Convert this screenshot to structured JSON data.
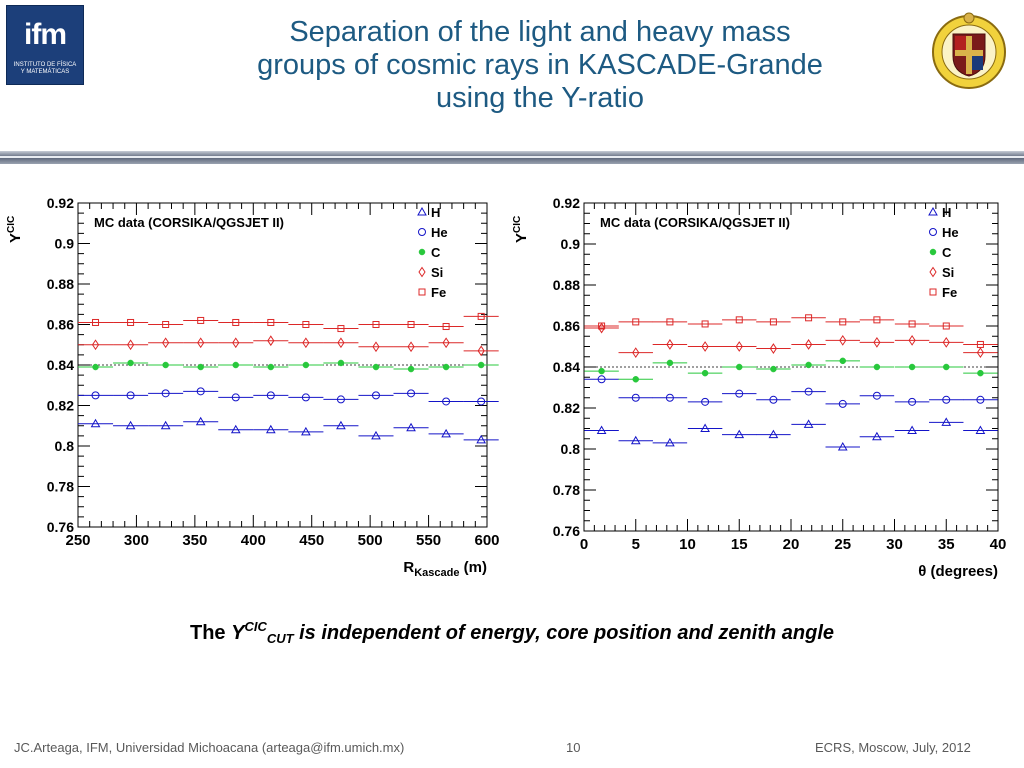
{
  "title": {
    "line1": "Separation of the light and heavy mass",
    "line2": "groups of cosmic rays in KASCADE-Grande",
    "line3": "using the Y-ratio"
  },
  "logo_left": {
    "text": "ifm",
    "subtext_1": "INSTITUTO DE FÍSICA",
    "subtext_2": "Y MATEMÁTICAS"
  },
  "logo_right": {
    "name": "university-crest"
  },
  "subtitle": {
    "prefix": "The",
    "var": "Y",
    "sup": "CIC",
    "sub": "CUT",
    "rest": "is independent of energy, core position and zenith angle"
  },
  "footer": {
    "left": "JC.Arteaga, IFM,  Universidad Michoacana  (arteaga@ifm.umich.mx)",
    "page": "10",
    "right": "ECRS, Moscow, July, 2012"
  },
  "colors": {
    "title": "#1d5a82",
    "H": "#1414c8",
    "He": "#1414c8",
    "C": "#28c83c",
    "Si": "#dc2828",
    "Fe": "#dc2828"
  },
  "chart_data": [
    {
      "type": "scatter",
      "annotation": "MC data (CORSIKA/QGSJET II)",
      "ylabel": "Y",
      "ylabel_sup": "CIC",
      "xlabel": "R",
      "xlabel_sub": "Kascade",
      "xlabel_unit": "(m)",
      "xlim": [
        250,
        600
      ],
      "ylim": [
        0.76,
        0.92
      ],
      "xticks": [
        "250",
        "300",
        "350",
        "400",
        "450",
        "500",
        "550",
        "600"
      ],
      "yticks": [
        "0.76",
        "0.78",
        "0.8",
        "0.82",
        "0.84",
        "0.86",
        "0.88",
        "0.9",
        "0.92"
      ],
      "reference_line": 0.84,
      "bin_width": 30,
      "x": [
        265,
        295,
        325,
        355,
        385,
        415,
        445,
        475,
        505,
        535,
        565,
        595
      ],
      "series": [
        {
          "name": "H",
          "marker": "triangle",
          "values": [
            0.811,
            0.81,
            0.81,
            0.812,
            0.808,
            0.808,
            0.807,
            0.81,
            0.805,
            0.809,
            0.806,
            0.803
          ]
        },
        {
          "name": "He",
          "marker": "circle",
          "values": [
            0.825,
            0.825,
            0.826,
            0.827,
            0.824,
            0.825,
            0.824,
            0.823,
            0.825,
            0.826,
            0.822,
            0.822
          ]
        },
        {
          "name": "C",
          "marker": "dot",
          "values": [
            0.839,
            0.841,
            0.84,
            0.839,
            0.84,
            0.839,
            0.84,
            0.841,
            0.839,
            0.838,
            0.839,
            0.84
          ]
        },
        {
          "name": "Si",
          "marker": "diamond",
          "values": [
            0.85,
            0.85,
            0.851,
            0.851,
            0.851,
            0.852,
            0.851,
            0.851,
            0.849,
            0.849,
            0.851,
            0.847
          ]
        },
        {
          "name": "Fe",
          "marker": "square",
          "values": [
            0.861,
            0.861,
            0.86,
            0.862,
            0.861,
            0.861,
            0.86,
            0.858,
            0.86,
            0.86,
            0.859,
            0.864
          ]
        }
      ]
    },
    {
      "type": "scatter",
      "annotation": "MC data (CORSIKA/QGSJET II)",
      "ylabel": "Y",
      "ylabel_sup": "CIC",
      "xlabel": "θ (degrees)",
      "xlim": [
        0,
        40
      ],
      "ylim": [
        0.76,
        0.92
      ],
      "xticks": [
        "0",
        "5",
        "10",
        "15",
        "20",
        "25",
        "30",
        "35",
        "40"
      ],
      "yticks": [
        "0.76",
        "0.78",
        "0.8",
        "0.82",
        "0.84",
        "0.86",
        "0.88",
        "0.9",
        "0.92"
      ],
      "reference_line": 0.84,
      "bin_width": 3.33,
      "x": [
        1.7,
        5.0,
        8.3,
        11.7,
        15.0,
        18.3,
        21.7,
        25.0,
        28.3,
        31.7,
        35.0,
        38.3
      ],
      "series": [
        {
          "name": "H",
          "marker": "triangle",
          "values": [
            0.809,
            0.804,
            0.803,
            0.81,
            0.807,
            0.807,
            0.812,
            0.801,
            0.806,
            0.809,
            0.813,
            0.809
          ]
        },
        {
          "name": "He",
          "marker": "circle",
          "values": [
            0.834,
            0.825,
            0.825,
            0.823,
            0.827,
            0.824,
            0.828,
            0.822,
            0.826,
            0.823,
            0.824,
            0.824
          ]
        },
        {
          "name": "C",
          "marker": "dot",
          "values": [
            0.838,
            0.834,
            0.842,
            0.837,
            0.84,
            0.839,
            0.841,
            0.843,
            0.84,
            0.84,
            0.84,
            0.837
          ]
        },
        {
          "name": "Si",
          "marker": "diamond",
          "values": [
            0.859,
            0.847,
            0.851,
            0.85,
            0.85,
            0.849,
            0.851,
            0.853,
            0.852,
            0.853,
            0.852,
            0.847
          ]
        },
        {
          "name": "Fe",
          "marker": "square",
          "values": [
            0.86,
            0.862,
            0.862,
            0.861,
            0.863,
            0.862,
            0.864,
            0.862,
            0.863,
            0.861,
            0.86,
            0.851
          ]
        }
      ]
    }
  ]
}
